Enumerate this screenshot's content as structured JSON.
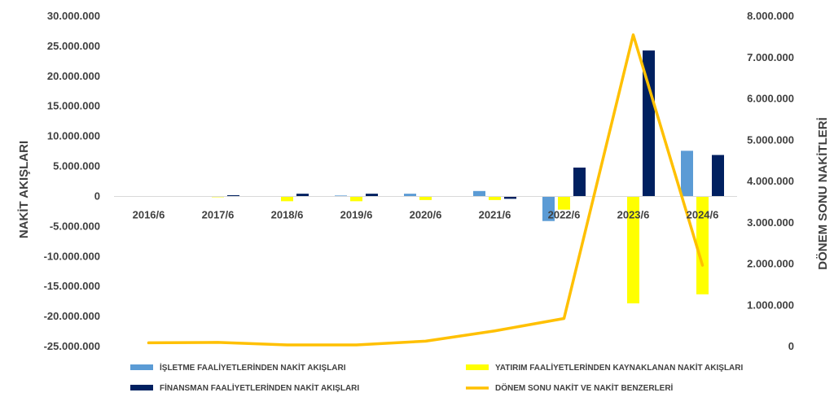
{
  "chart_data": {
    "type": "bar",
    "categories": [
      "2016/6",
      "2017/6",
      "2018/6",
      "2019/6",
      "2020/6",
      "2021/6",
      "2022/6",
      "2023/6",
      "2024/6"
    ],
    "y_left": {
      "label": "NAKİT AKIŞLARI",
      "ylim": [
        -25000000,
        30000000
      ],
      "ticks": [
        "30.000.000",
        "25.000.000",
        "20.000.000",
        "15.000.000",
        "10.000.000",
        "5.000.000",
        "0",
        "-5.000.000",
        "-10.000.000",
        "-15.000.000",
        "-20.000.000",
        "-25.000.000"
      ],
      "tick_values": [
        30000000,
        25000000,
        20000000,
        15000000,
        10000000,
        5000000,
        0,
        -5000000,
        -10000000,
        -15000000,
        -20000000,
        -25000000
      ]
    },
    "y_right": {
      "label": "DÖNEM SONU NAKİTLERİ",
      "ylim": [
        0,
        8000000
      ],
      "ticks": [
        "8.000.000",
        "7.000.000",
        "6.000.000",
        "5.000.000",
        "4.000.000",
        "3.000.000",
        "2.000.000",
        "1.000.000",
        "0"
      ],
      "tick_values": [
        8000000,
        7000000,
        6000000,
        5000000,
        4000000,
        3000000,
        2000000,
        1000000,
        0
      ]
    },
    "series": [
      {
        "name": "İŞLETME FAALİYETLERİNDEN NAKİT AKIŞLARI",
        "type": "bar",
        "axis": "left",
        "color": "#5B9BD5",
        "values": [
          0,
          0,
          0,
          150000,
          450000,
          900000,
          -4100000,
          0,
          7600000
        ]
      },
      {
        "name": "YATIRIM FAALİYETLERİNDEN KAYNAKLANAN NAKİT AKIŞLARI",
        "type": "bar",
        "axis": "left",
        "color": "#FFFF00",
        "values": [
          0,
          -100000,
          -800000,
          -800000,
          -600000,
          -600000,
          -2200000,
          -17800000,
          -16300000
        ]
      },
      {
        "name": "FİNANSMAN FAALİYETLERİNDEN NAKİT AKIŞLARI",
        "type": "bar",
        "axis": "left",
        "color": "#002060",
        "values": [
          0,
          200000,
          450000,
          450000,
          0,
          -400000,
          4800000,
          24300000,
          6900000
        ]
      },
      {
        "name": "DÖNEM SONU NAKİT VE NAKİT BENZERLERİ",
        "type": "line",
        "axis": "right",
        "color": "#FFC000",
        "values": [
          90000,
          100000,
          40000,
          40000,
          130000,
          380000,
          680000,
          7550000,
          1970000
        ]
      }
    ],
    "legend": "bottom",
    "grid": false
  }
}
